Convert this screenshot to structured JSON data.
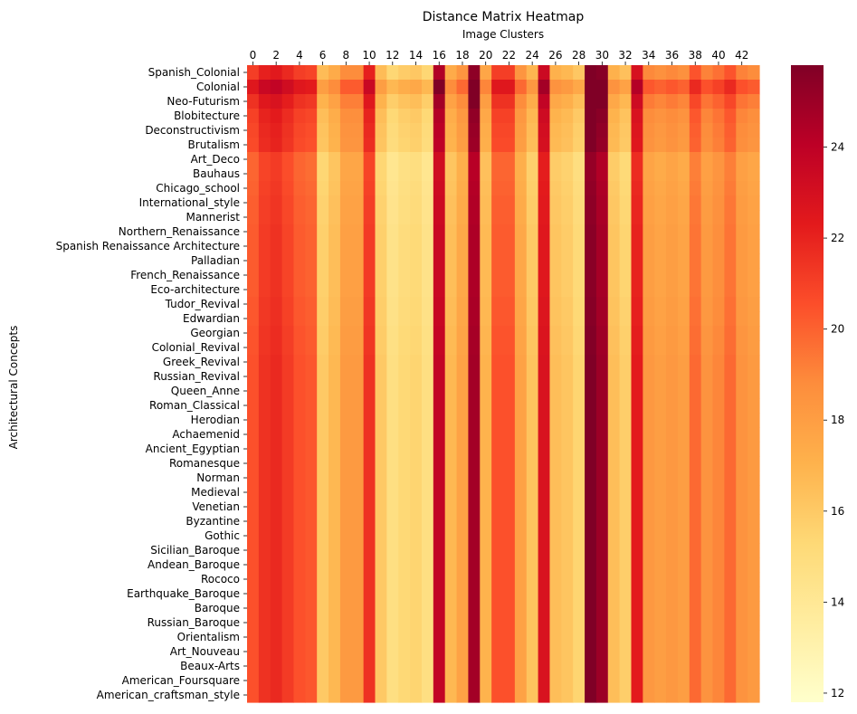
{
  "chart_data": {
    "type": "heatmap",
    "title": "Distance Matrix Heatmap",
    "xlabel": "Image Clusters",
    "ylabel": "Architectural Concepts",
    "x_tick_labels": [
      "0",
      "2",
      "4",
      "6",
      "8",
      "10",
      "12",
      "14",
      "16",
      "18",
      "20",
      "22",
      "24",
      "26",
      "28",
      "30",
      "32",
      "34",
      "36",
      "38",
      "40",
      "42"
    ],
    "rows": [
      "Spanish_Colonial",
      "Colonial",
      "Neo-Futurism",
      "Blobitecture",
      "Deconstructivism",
      "Brutalism",
      "Art_Deco",
      "Bauhaus",
      "Chicago_school",
      "International_style",
      "Mannerist",
      "Northern_Renaissance",
      "Spanish Renaissance Architecture",
      "Palladian",
      "French_Renaissance",
      "Eco-architecture",
      "Tudor_Revival",
      "Edwardian",
      "Georgian",
      "Colonial_Revival",
      "Greek_Revival",
      "Russian_Revival",
      "Queen_Anne",
      "Roman_Classical",
      "Herodian",
      "Achaemenid",
      "Ancient_Egyptian",
      "Romanesque",
      "Norman",
      "Medieval",
      "Venetian",
      "Byzantine",
      "Gothic",
      "Sicilian_Baroque",
      "Andean_Baroque",
      "Rococo",
      "Earthquake_Baroque",
      "Baroque",
      "Russian_Baroque",
      "Orientalism",
      "Art_Nouveau",
      "Beaux-Arts",
      "American_Foursquare",
      "American_craftsman_style"
    ],
    "column_base": [
      20.5,
      21.5,
      21.8,
      21.2,
      20.5,
      20.3,
      16.0,
      16.8,
      18.2,
      18.2,
      21.5,
      16.0,
      14.8,
      15.3,
      15.5,
      14.8,
      23.8,
      16.8,
      17.8,
      24.8,
      17.0,
      20.5,
      20.5,
      17.8,
      16.3,
      22.8,
      16.5,
      16.2,
      15.5,
      25.8,
      25.0,
      16.5,
      15.8,
      22.3,
      18.3,
      18.0,
      18.3,
      18.0,
      19.8,
      18.5,
      19.0,
      19.8,
      18.5,
      18.2
    ],
    "row_offset": [
      0.6,
      2.0,
      1.0,
      0.5,
      0.3,
      0.2,
      -0.6,
      -0.6,
      -0.5,
      -0.4,
      -0.4,
      -0.3,
      -0.3,
      -0.3,
      -0.3,
      -0.3,
      -0.2,
      -0.2,
      -0.1,
      -0.1,
      0.0,
      0.0,
      0.0,
      0.0,
      0.0,
      0.0,
      0.0,
      0.0,
      0.0,
      0.0,
      0.0,
      0.0,
      0.0,
      0.0,
      0.0,
      0.0,
      0.0,
      0.0,
      0.0,
      0.0,
      0.0,
      0.0,
      0.0,
      0.0
    ],
    "value_note_levels": [
      12,
      14,
      16,
      18,
      20,
      22,
      24
    ],
    "colorbar": {
      "ticks": [
        "12",
        "14",
        "16",
        "18",
        "20",
        "22",
        "24"
      ],
      "vmin": 11.8,
      "vmax": 25.8,
      "colormap": "YlOrRd"
    },
    "grid": false,
    "legend": "colorbar-right"
  },
  "colors": {
    "stops": [
      "#ffffcc",
      "#ffeda0",
      "#fed976",
      "#feb24c",
      "#fd8d3c",
      "#fc4e2a",
      "#e31a1c",
      "#bd0026",
      "#800026"
    ]
  }
}
